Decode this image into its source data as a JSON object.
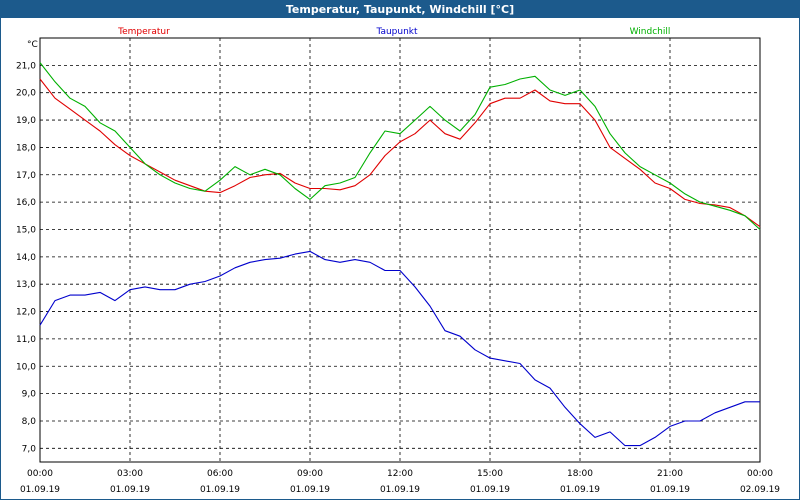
{
  "window": {
    "title": "Temperatur, Taupunkt, Windchill [°C]"
  },
  "chart_data": {
    "type": "line",
    "title": "Temperatur, Taupunkt, Windchill [°C]",
    "ylabel": "°C",
    "xlabel": "",
    "ylim": [
      6.5,
      22.0
    ],
    "xlim": [
      0,
      24
    ],
    "grid": true,
    "legend_placement": "top",
    "y_ticks": [
      "7,0",
      "8,0",
      "9,0",
      "10,0",
      "11,0",
      "12,0",
      "13,0",
      "14,0",
      "15,0",
      "16,0",
      "17,0",
      "18,0",
      "19,0",
      "20,0",
      "21,0"
    ],
    "x_ticks": [
      {
        "time": "00:00",
        "date": "01.09.19"
      },
      {
        "time": "03:00",
        "date": "01.09.19"
      },
      {
        "time": "06:00",
        "date": "01.09.19"
      },
      {
        "time": "09:00",
        "date": "01.09.19"
      },
      {
        "time": "12:00",
        "date": "01.09.19"
      },
      {
        "time": "15:00",
        "date": "01.09.19"
      },
      {
        "time": "18:00",
        "date": "01.09.19"
      },
      {
        "time": "21:00",
        "date": "01.09.19"
      },
      {
        "time": "00:00",
        "date": "02.09.19"
      }
    ],
    "series": [
      {
        "name": "Temperatur",
        "color": "#e00000",
        "x": [
          0,
          0.5,
          1,
          1.5,
          2,
          2.5,
          3,
          3.5,
          4,
          4.5,
          5,
          5.5,
          6,
          6.5,
          7,
          7.5,
          8,
          8.5,
          9,
          9.5,
          10,
          10.5,
          11,
          11.5,
          12,
          12.5,
          13,
          13.5,
          14,
          14.5,
          15,
          15.5,
          16,
          16.5,
          17,
          17.5,
          18,
          18.5,
          19,
          19.5,
          20,
          20.5,
          21,
          21.5,
          22,
          22.5,
          23,
          23.5,
          24
        ],
        "values": [
          20.5,
          19.8,
          19.4,
          19.0,
          18.6,
          18.1,
          17.7,
          17.4,
          17.1,
          16.8,
          16.6,
          16.4,
          16.35,
          16.6,
          16.9,
          17.0,
          17.05,
          16.7,
          16.5,
          16.5,
          16.45,
          16.6,
          17.0,
          17.7,
          18.2,
          18.5,
          19.0,
          18.5,
          18.3,
          18.9,
          19.6,
          19.8,
          19.8,
          20.1,
          19.7,
          19.6,
          19.6,
          19.0,
          18.0,
          17.6,
          17.2,
          16.7,
          16.5,
          16.1,
          15.95,
          15.9,
          15.8,
          15.5,
          15.1
        ]
      },
      {
        "name": "Taupunkt",
        "color": "#0000cc",
        "x": [
          0,
          0.5,
          1,
          1.5,
          2,
          2.5,
          3,
          3.5,
          4,
          4.5,
          5,
          5.5,
          6,
          6.5,
          7,
          7.5,
          8,
          8.5,
          9,
          9.5,
          10,
          10.5,
          11,
          11.5,
          12,
          12.5,
          13,
          13.5,
          14,
          14.5,
          15,
          15.5,
          16,
          16.5,
          17,
          17.5,
          18,
          18.5,
          19,
          19.5,
          20,
          20.5,
          21,
          21.5,
          22,
          22.5,
          23,
          23.5,
          24
        ],
        "values": [
          11.5,
          12.4,
          12.6,
          12.6,
          12.7,
          12.4,
          12.8,
          12.9,
          12.8,
          12.8,
          13.0,
          13.1,
          13.3,
          13.6,
          13.8,
          13.9,
          13.95,
          14.1,
          14.2,
          13.9,
          13.8,
          13.9,
          13.8,
          13.5,
          13.5,
          12.9,
          12.2,
          11.3,
          11.1,
          10.6,
          10.3,
          10.2,
          10.1,
          9.5,
          9.2,
          8.5,
          7.9,
          7.4,
          7.6,
          7.1,
          7.1,
          7.4,
          7.8,
          8.0,
          8.0,
          8.3,
          8.5,
          8.7,
          8.7
        ]
      },
      {
        "name": "Windchill",
        "color": "#00b000",
        "x": [
          0,
          0.5,
          1,
          1.5,
          2,
          2.5,
          3,
          3.5,
          4,
          4.5,
          5,
          5.5,
          6,
          6.5,
          7,
          7.5,
          8,
          8.5,
          9,
          9.5,
          10,
          10.5,
          11,
          11.5,
          12,
          12.5,
          13,
          13.5,
          14,
          14.5,
          15,
          15.5,
          16,
          16.5,
          17,
          17.5,
          18,
          18.5,
          19,
          19.5,
          20,
          20.5,
          21,
          21.5,
          22,
          22.5,
          23,
          23.5,
          24
        ],
        "values": [
          21.1,
          20.4,
          19.8,
          19.5,
          18.9,
          18.6,
          18.0,
          17.4,
          17.0,
          16.7,
          16.5,
          16.4,
          16.8,
          17.3,
          17.0,
          17.2,
          17.0,
          16.5,
          16.1,
          16.6,
          16.7,
          16.9,
          17.8,
          18.6,
          18.5,
          19.0,
          19.5,
          19.0,
          18.6,
          19.2,
          20.2,
          20.3,
          20.5,
          20.6,
          20.1,
          19.9,
          20.1,
          19.5,
          18.5,
          17.8,
          17.3,
          17.0,
          16.7,
          16.3,
          16.0,
          15.85,
          15.7,
          15.5,
          15.0
        ]
      }
    ]
  }
}
